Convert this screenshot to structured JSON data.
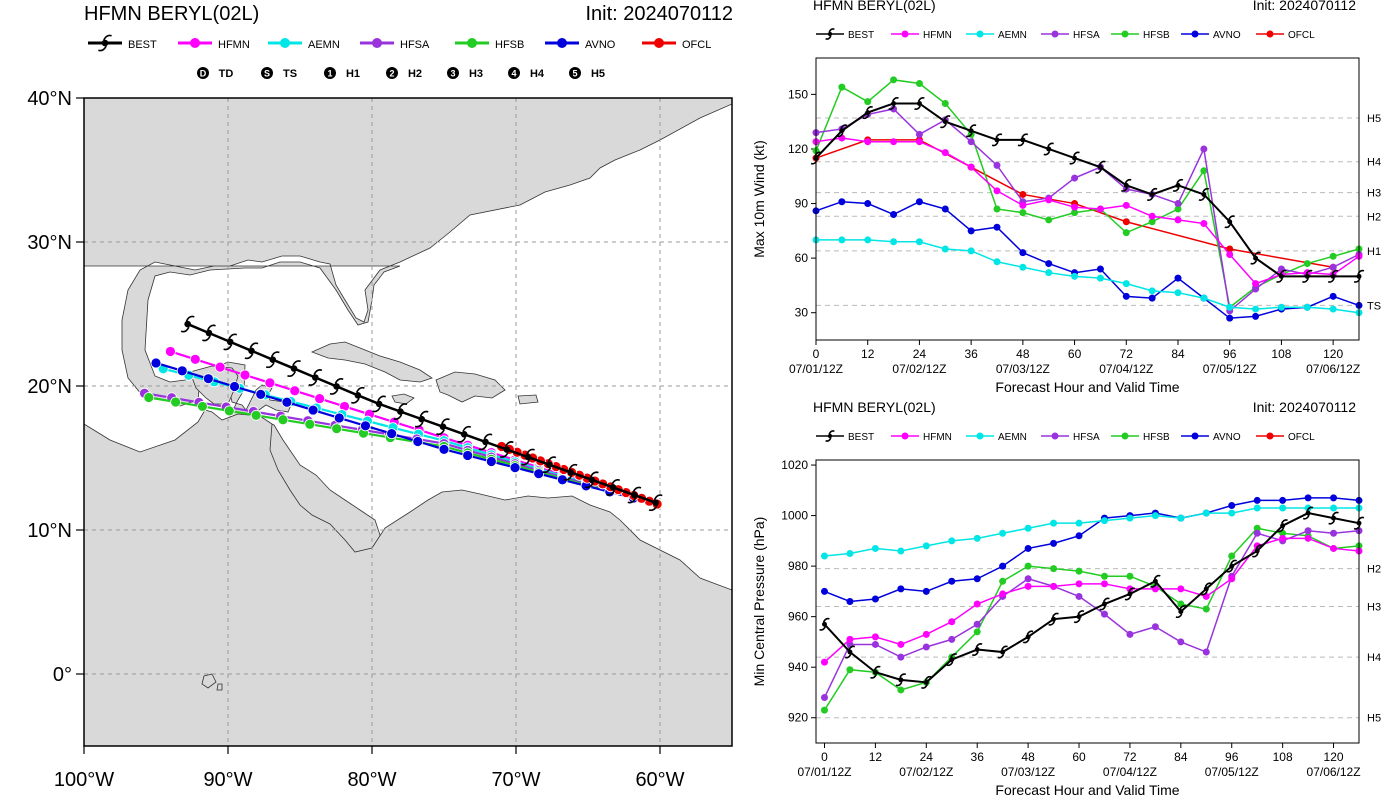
{
  "map": {
    "title_left": "HFMN BERYL(02L)",
    "title_right": "Init: 2024070112",
    "legend": [
      {
        "name": "BEST",
        "color": "#000000"
      },
      {
        "name": "HFMN",
        "color": "#ff00ff"
      },
      {
        "name": "AEMN",
        "color": "#00e5e5"
      },
      {
        "name": "HFSA",
        "color": "#9933dd"
      },
      {
        "name": "HFSB",
        "color": "#22cc22"
      },
      {
        "name": "AVNO",
        "color": "#0000dd"
      },
      {
        "name": "OFCL",
        "color": "#ee0000"
      }
    ],
    "intensity_legend": [
      {
        "sym": "D",
        "label": "TD"
      },
      {
        "sym": "S",
        "label": "TS"
      },
      {
        "sym": "1",
        "label": "H1"
      },
      {
        "sym": "2",
        "label": "H2"
      },
      {
        "sym": "3",
        "label": "H3"
      },
      {
        "sym": "4",
        "label": "H4"
      },
      {
        "sym": "5",
        "label": "H5"
      }
    ],
    "lat_labels": [
      "40°N",
      "30°N",
      "20°N",
      "10°N",
      "0°"
    ],
    "lon_labels": [
      "100°W",
      "90°W",
      "80°W",
      "70°W",
      "60°W"
    ]
  },
  "chart_data": [
    {
      "type": "line",
      "title": "HFMN BERYL(02L)",
      "subtitle": "Init: 2024070112",
      "xlabel": "Forecast Hour and Valid Time",
      "ylabel": "Max 10m Wind (kt)",
      "xlim": [
        0,
        126
      ],
      "ylim": [
        15,
        170
      ],
      "x_ticks": [
        "0",
        "12",
        "24",
        "36",
        "48",
        "60",
        "72",
        "84",
        "96",
        "108",
        "120"
      ],
      "x_date_ticks": [
        "07/01/12Z",
        "07/02/12Z",
        "07/03/12Z",
        "07/04/12Z",
        "07/05/12Z",
        "07/06/12Z"
      ],
      "y_ticks": [
        "30",
        "60",
        "90",
        "120",
        "150"
      ],
      "ref_lines": [
        {
          "label": "TS",
          "value": 34
        },
        {
          "label": "H1",
          "value": 64
        },
        {
          "label": "H2",
          "value": 83
        },
        {
          "label": "H3",
          "value": 96
        },
        {
          "label": "H4",
          "value": 113
        },
        {
          "label": "H5",
          "value": 137
        }
      ],
      "series": [
        {
          "name": "BEST",
          "color": "#000000",
          "x": [
            0,
            6,
            12,
            18,
            24,
            30,
            36,
            42,
            48,
            54,
            60,
            66,
            72,
            78,
            84,
            90,
            96,
            102,
            108,
            114,
            120,
            126
          ],
          "values": [
            115,
            130,
            140,
            145,
            145,
            135,
            130,
            125,
            125,
            120,
            115,
            110,
            100,
            95,
            100,
            95,
            80,
            60,
            50,
            50,
            50,
            50
          ]
        },
        {
          "name": "HFMN",
          "color": "#ff00ff",
          "x": [
            0,
            6,
            12,
            18,
            24,
            30,
            36,
            42,
            48,
            54,
            60,
            66,
            72,
            78,
            84,
            90,
            96,
            102,
            108,
            114,
            120,
            126
          ],
          "values": [
            124,
            126,
            124,
            124,
            124,
            118,
            110,
            97,
            89,
            92,
            88,
            87,
            89,
            83,
            81,
            79,
            62,
            46,
            51,
            52,
            51,
            61
          ]
        },
        {
          "name": "AEMN",
          "color": "#00e5e5",
          "x": [
            0,
            6,
            12,
            18,
            24,
            30,
            36,
            42,
            48,
            54,
            60,
            66,
            72,
            78,
            84,
            90,
            96,
            102,
            108,
            114,
            120,
            126
          ],
          "values": [
            70,
            70,
            70,
            69,
            69,
            65,
            64,
            58,
            55,
            52,
            50,
            49,
            46,
            42,
            41,
            38,
            33,
            32,
            33,
            33,
            32,
            30
          ]
        },
        {
          "name": "HFSA",
          "color": "#9933dd",
          "x": [
            0,
            6,
            12,
            18,
            24,
            30,
            36,
            42,
            48,
            54,
            60,
            66,
            72,
            78,
            84,
            90,
            96,
            102,
            108,
            114,
            120,
            126
          ],
          "values": [
            129,
            131,
            139,
            142,
            128,
            136,
            124,
            111,
            91,
            93,
            104,
            110,
            98,
            95,
            90,
            120,
            31,
            43,
            54,
            51,
            55,
            62
          ]
        },
        {
          "name": "HFSB",
          "color": "#22cc22",
          "x": [
            0,
            6,
            12,
            18,
            24,
            30,
            36,
            42,
            48,
            54,
            60,
            66,
            72,
            78,
            84,
            90,
            96,
            102,
            108,
            114,
            120,
            126
          ],
          "values": [
            119,
            154,
            146,
            158,
            156,
            145,
            128,
            87,
            85,
            81,
            85,
            87,
            74,
            80,
            87,
            108,
            33,
            44,
            51,
            57,
            61,
            65
          ]
        },
        {
          "name": "AVNO",
          "color": "#0000dd",
          "x": [
            0,
            6,
            12,
            18,
            24,
            30,
            36,
            42,
            48,
            54,
            60,
            66,
            72,
            78,
            84,
            90,
            96,
            102,
            108,
            114,
            120,
            126
          ],
          "values": [
            86,
            91,
            90,
            84,
            91,
            87,
            75,
            77,
            63,
            57,
            52,
            54,
            39,
            38,
            49,
            38,
            27,
            28,
            32,
            33,
            39,
            34
          ]
        },
        {
          "name": "OFCL",
          "color": "#ee0000",
          "x": [
            0,
            12,
            24,
            36,
            48,
            60,
            72,
            96,
            120
          ],
          "values": [
            115,
            125,
            125,
            110,
            95,
            90,
            80,
            65,
            55
          ]
        }
      ]
    },
    {
      "type": "line",
      "title": "HFMN BERYL(02L)",
      "subtitle": "Init: 2024070112",
      "xlabel": "Forecast Hour and Valid Time",
      "ylabel": "Min Central Pressure (hPa)",
      "xlim": [
        -2,
        126
      ],
      "ylim": [
        910,
        1022
      ],
      "x_ticks": [
        "0",
        "12",
        "24",
        "36",
        "48",
        "60",
        "72",
        "84",
        "96",
        "108",
        "120"
      ],
      "x_date_ticks": [
        "07/01/12Z",
        "07/02/12Z",
        "07/03/12Z",
        "07/04/12Z",
        "07/05/12Z",
        "07/06/12Z"
      ],
      "y_ticks": [
        "920",
        "940",
        "960",
        "980",
        "1000",
        "1020"
      ],
      "ref_lines": [
        {
          "label": "H2",
          "value": 979
        },
        {
          "label": "H3",
          "value": 964
        },
        {
          "label": "H4",
          "value": 944
        },
        {
          "label": "H5",
          "value": 920
        }
      ],
      "series": [
        {
          "name": "BEST",
          "color": "#000000",
          "x": [
            0,
            6,
            12,
            18,
            24,
            30,
            36,
            42,
            48,
            54,
            60,
            66,
            72,
            78,
            84,
            90,
            96,
            102,
            108,
            114,
            120,
            126
          ],
          "values": [
            957,
            946,
            938,
            935,
            934,
            943,
            947,
            946,
            952,
            959,
            960,
            965,
            969,
            974,
            962,
            971,
            980,
            986,
            996,
            1001,
            999,
            997
          ]
        },
        {
          "name": "HFMN",
          "color": "#ff00ff",
          "x": [
            0,
            6,
            12,
            18,
            24,
            30,
            36,
            42,
            48,
            54,
            60,
            66,
            72,
            78,
            84,
            90,
            96,
            102,
            108,
            114,
            120,
            126
          ],
          "values": [
            942,
            951,
            952,
            949,
            953,
            958,
            965,
            969,
            972,
            972,
            973,
            973,
            971,
            971,
            971,
            968,
            975,
            988,
            991,
            991,
            987,
            986
          ]
        },
        {
          "name": "AEMN",
          "color": "#00e5e5",
          "x": [
            0,
            6,
            12,
            18,
            24,
            30,
            36,
            42,
            48,
            54,
            60,
            66,
            72,
            78,
            84,
            90,
            96,
            102,
            108,
            114,
            120,
            126
          ],
          "values": [
            984,
            985,
            987,
            986,
            988,
            990,
            991,
            993,
            995,
            997,
            997,
            998,
            999,
            1000,
            999,
            1001,
            1001,
            1003,
            1003,
            1003,
            1003,
            1003
          ]
        },
        {
          "name": "HFSA",
          "color": "#9933dd",
          "x": [
            0,
            6,
            12,
            18,
            24,
            30,
            36,
            42,
            48,
            54,
            60,
            66,
            72,
            78,
            84,
            90,
            96,
            102,
            108,
            114,
            120,
            126
          ],
          "values": [
            928,
            949,
            949,
            944,
            948,
            951,
            957,
            968,
            975,
            972,
            968,
            961,
            953,
            956,
            950,
            946,
            976,
            993,
            990,
            994,
            993,
            994
          ]
        },
        {
          "name": "HFSB",
          "color": "#22cc22",
          "x": [
            0,
            6,
            12,
            18,
            24,
            30,
            36,
            42,
            48,
            54,
            60,
            66,
            72,
            78,
            84,
            90,
            96,
            102,
            108,
            114,
            120,
            126
          ],
          "values": [
            923,
            939,
            938,
            931,
            934,
            944,
            954,
            974,
            980,
            979,
            978,
            976,
            976,
            972,
            965,
            963,
            984,
            995,
            993,
            992,
            987,
            988
          ]
        },
        {
          "name": "AVNO",
          "color": "#0000dd",
          "x": [
            0,
            6,
            12,
            18,
            24,
            30,
            36,
            42,
            48,
            54,
            60,
            66,
            72,
            78,
            84,
            90,
            96,
            102,
            108,
            114,
            120,
            126
          ],
          "values": [
            970,
            966,
            967,
            971,
            970,
            974,
            975,
            980,
            987,
            989,
            992,
            999,
            1000,
            1001,
            999,
            1001,
            1004,
            1006,
            1006,
            1007,
            1007,
            1006
          ]
        },
        {
          "name": "OFCL",
          "color": "#ee0000",
          "x": [],
          "values": []
        }
      ]
    }
  ]
}
